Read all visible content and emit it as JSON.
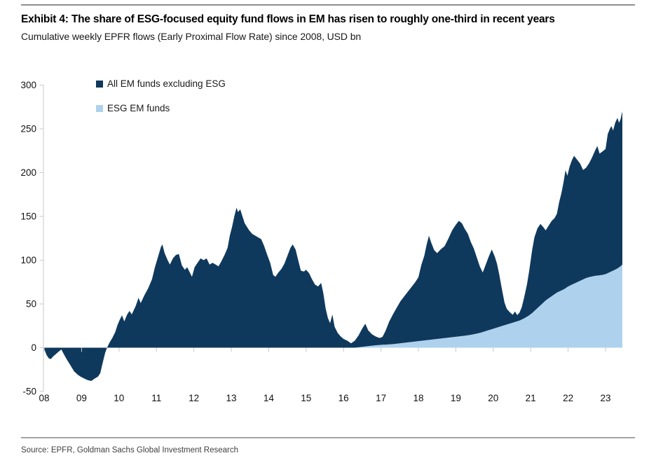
{
  "header": {
    "title": "Exhibit 4: The share of ESG-focused equity fund flows in EM has risen to roughly one-third in recent years",
    "subtitle": "Cumulative weekly EPFR flows (Early Proximal Flow Rate) since 2008, USD bn"
  },
  "legend": [
    {
      "label": "All EM funds excluding ESG",
      "color": "#0f395c"
    },
    {
      "label": "ESG EM funds",
      "color": "#aed2ee"
    }
  ],
  "footer": {
    "source": "Source: EPFR, Goldman Sachs Global Investment Research"
  },
  "colors": {
    "non_esg_area": "#0f395c",
    "esg_area": "#aed2ee",
    "axis": "#c9c9c9",
    "tick_label": "#111111",
    "background": "#ffffff"
  },
  "chart_data": {
    "type": "area",
    "stacked": true,
    "title": "Exhibit 4: The share of ESG-focused equity fund flows in EM has risen to roughly one-third in recent years",
    "subtitle": "Cumulative weekly EPFR flows (Early Proximal Flow Rate) since 2008, USD bn",
    "xlabel": "",
    "ylabel": "USD bn",
    "grid": false,
    "legend_position": "top-left",
    "ylim": [
      -50,
      300
    ],
    "y_ticks": [
      300,
      250,
      200,
      150,
      100,
      50,
      0,
      -50
    ],
    "x_tick_labels": [
      "08",
      "09",
      "10",
      "11",
      "12",
      "13",
      "14",
      "15",
      "16",
      "17",
      "18",
      "19",
      "20",
      "21",
      "22",
      "23"
    ],
    "x_tick_years": [
      2008,
      2009,
      2010,
      2011,
      2012,
      2013,
      2014,
      2015,
      2016,
      2017,
      2018,
      2019,
      2020,
      2021,
      2022,
      2023
    ],
    "x_range": [
      2008,
      2023.45
    ],
    "series": [
      {
        "name": "All EM funds excluding ESG",
        "stack_order": "top",
        "color": "#0f395c",
        "points": [
          [
            2008.0,
            -1
          ],
          [
            2008.06,
            -8
          ],
          [
            2008.12,
            -12
          ],
          [
            2008.18,
            -13
          ],
          [
            2008.24,
            -10
          ],
          [
            2008.32,
            -7
          ],
          [
            2008.4,
            -4
          ],
          [
            2008.46,
            -2
          ],
          [
            2008.52,
            -7
          ],
          [
            2008.6,
            -13
          ],
          [
            2008.7,
            -20
          ],
          [
            2008.8,
            -27
          ],
          [
            2008.9,
            -31
          ],
          [
            2008.97,
            -33
          ],
          [
            2009.06,
            -35
          ],
          [
            2009.16,
            -37
          ],
          [
            2009.26,
            -38
          ],
          [
            2009.36,
            -35
          ],
          [
            2009.44,
            -33
          ],
          [
            2009.5,
            -29
          ],
          [
            2009.56,
            -18
          ],
          [
            2009.63,
            -6
          ],
          [
            2009.68,
            0
          ],
          [
            2009.75,
            6
          ],
          [
            2009.82,
            11
          ],
          [
            2009.9,
            18
          ],
          [
            2009.96,
            26
          ],
          [
            2010.02,
            32
          ],
          [
            2010.08,
            37
          ],
          [
            2010.14,
            30
          ],
          [
            2010.22,
            38
          ],
          [
            2010.28,
            42
          ],
          [
            2010.34,
            38
          ],
          [
            2010.45,
            48
          ],
          [
            2010.52,
            57
          ],
          [
            2010.58,
            51
          ],
          [
            2010.68,
            60
          ],
          [
            2010.78,
            68
          ],
          [
            2010.88,
            78
          ],
          [
            2010.96,
            92
          ],
          [
            2011.05,
            105
          ],
          [
            2011.12,
            115
          ],
          [
            2011.16,
            118
          ],
          [
            2011.22,
            108
          ],
          [
            2011.3,
            100
          ],
          [
            2011.36,
            95
          ],
          [
            2011.44,
            102
          ],
          [
            2011.52,
            106
          ],
          [
            2011.6,
            107
          ],
          [
            2011.68,
            94
          ],
          [
            2011.76,
            89
          ],
          [
            2011.82,
            92
          ],
          [
            2011.88,
            87
          ],
          [
            2011.95,
            81
          ],
          [
            2012.02,
            92
          ],
          [
            2012.1,
            97
          ],
          [
            2012.18,
            102
          ],
          [
            2012.26,
            100
          ],
          [
            2012.34,
            102
          ],
          [
            2012.42,
            95
          ],
          [
            2012.5,
            97
          ],
          [
            2012.58,
            95
          ],
          [
            2012.66,
            93
          ],
          [
            2012.74,
            99
          ],
          [
            2012.82,
            106
          ],
          [
            2012.9,
            114
          ],
          [
            2012.96,
            128
          ],
          [
            2013.02,
            138
          ],
          [
            2013.08,
            150
          ],
          [
            2013.14,
            160
          ],
          [
            2013.18,
            155
          ],
          [
            2013.24,
            158
          ],
          [
            2013.3,
            150
          ],
          [
            2013.36,
            142
          ],
          [
            2013.42,
            138
          ],
          [
            2013.48,
            134
          ],
          [
            2013.56,
            130
          ],
          [
            2013.64,
            128
          ],
          [
            2013.72,
            126
          ],
          [
            2013.8,
            124
          ],
          [
            2013.88,
            116
          ],
          [
            2013.96,
            106
          ],
          [
            2014.04,
            97
          ],
          [
            2014.12,
            83
          ],
          [
            2014.18,
            81
          ],
          [
            2014.26,
            86
          ],
          [
            2014.34,
            90
          ],
          [
            2014.42,
            96
          ],
          [
            2014.5,
            105
          ],
          [
            2014.58,
            114
          ],
          [
            2014.64,
            118
          ],
          [
            2014.72,
            112
          ],
          [
            2014.8,
            98
          ],
          [
            2014.86,
            88
          ],
          [
            2014.94,
            87
          ],
          [
            2015.0,
            89
          ],
          [
            2015.08,
            85
          ],
          [
            2015.16,
            78
          ],
          [
            2015.24,
            72
          ],
          [
            2015.32,
            70
          ],
          [
            2015.4,
            74
          ],
          [
            2015.46,
            62
          ],
          [
            2015.52,
            45
          ],
          [
            2015.58,
            34
          ],
          [
            2015.64,
            28
          ],
          [
            2015.7,
            38
          ],
          [
            2015.76,
            24
          ],
          [
            2015.84,
            17
          ],
          [
            2015.92,
            13
          ],
          [
            2016.0,
            10
          ],
          [
            2016.1,
            8
          ],
          [
            2016.2,
            5
          ],
          [
            2016.3,
            8
          ],
          [
            2016.4,
            13.5
          ],
          [
            2016.5,
            21
          ],
          [
            2016.58,
            26
          ],
          [
            2016.66,
            18
          ],
          [
            2016.76,
            13
          ],
          [
            2016.86,
            10
          ],
          [
            2016.96,
            8
          ],
          [
            2017.04,
            9
          ],
          [
            2017.12,
            15.5
          ],
          [
            2017.22,
            26
          ],
          [
            2017.32,
            34
          ],
          [
            2017.42,
            41
          ],
          [
            2017.52,
            48
          ],
          [
            2017.62,
            53
          ],
          [
            2017.72,
            58
          ],
          [
            2017.82,
            63
          ],
          [
            2017.92,
            68
          ],
          [
            2018.0,
            73
          ],
          [
            2018.08,
            87
          ],
          [
            2018.16,
            97
          ],
          [
            2018.22,
            109
          ],
          [
            2018.28,
            119
          ],
          [
            2018.34,
            111
          ],
          [
            2018.42,
            102
          ],
          [
            2018.5,
            98
          ],
          [
            2018.6,
            102
          ],
          [
            2018.7,
            105
          ],
          [
            2018.8,
            113
          ],
          [
            2018.9,
            122
          ],
          [
            2019.0,
            128
          ],
          [
            2019.08,
            132
          ],
          [
            2019.16,
            129
          ],
          [
            2019.24,
            122
          ],
          [
            2019.32,
            116
          ],
          [
            2019.4,
            106
          ],
          [
            2019.48,
            98
          ],
          [
            2019.56,
            87
          ],
          [
            2019.64,
            76
          ],
          [
            2019.72,
            68
          ],
          [
            2019.8,
            76
          ],
          [
            2019.88,
            84
          ],
          [
            2019.96,
            91
          ],
          [
            2020.04,
            82
          ],
          [
            2020.1,
            73
          ],
          [
            2020.16,
            60
          ],
          [
            2020.22,
            45
          ],
          [
            2020.3,
            26
          ],
          [
            2020.36,
            18
          ],
          [
            2020.44,
            13
          ],
          [
            2020.52,
            9
          ],
          [
            2020.58,
            12
          ],
          [
            2020.64,
            7
          ],
          [
            2020.7,
            9
          ],
          [
            2020.76,
            14
          ],
          [
            2020.82,
            23
          ],
          [
            2020.9,
            37
          ],
          [
            2020.96,
            51
          ],
          [
            2021.04,
            72
          ],
          [
            2021.1,
            84
          ],
          [
            2021.18,
            91
          ],
          [
            2021.26,
            93
          ],
          [
            2021.34,
            86
          ],
          [
            2021.4,
            80
          ],
          [
            2021.48,
            83
          ],
          [
            2021.56,
            86
          ],
          [
            2021.64,
            87
          ],
          [
            2021.7,
            90
          ],
          [
            2021.76,
            102
          ],
          [
            2021.82,
            111
          ],
          [
            2021.88,
            123
          ],
          [
            2021.93,
            135
          ],
          [
            2021.98,
            127
          ],
          [
            2022.04,
            136
          ],
          [
            2022.1,
            142
          ],
          [
            2022.16,
            146
          ],
          [
            2022.24,
            140
          ],
          [
            2022.32,
            134
          ],
          [
            2022.4,
            125
          ],
          [
            2022.48,
            126
          ],
          [
            2022.56,
            130
          ],
          [
            2022.64,
            136
          ],
          [
            2022.72,
            143
          ],
          [
            2022.78,
            148
          ],
          [
            2022.84,
            139
          ],
          [
            2022.92,
            141
          ],
          [
            2023.0,
            143
          ],
          [
            2023.06,
            159
          ],
          [
            2023.12,
            164
          ],
          [
            2023.16,
            166
          ],
          [
            2023.2,
            160
          ],
          [
            2023.26,
            168
          ],
          [
            2023.32,
            172
          ],
          [
            2023.36,
            165
          ],
          [
            2023.4,
            168
          ],
          [
            2023.45,
            175
          ]
        ]
      },
      {
        "name": "ESG EM funds",
        "stack_order": "bottom",
        "color": "#aed2ee",
        "points": [
          [
            2016.3,
            0
          ],
          [
            2016.5,
            1
          ],
          [
            2016.7,
            2
          ],
          [
            2016.9,
            3
          ],
          [
            2017.1,
            3.5
          ],
          [
            2017.3,
            4
          ],
          [
            2017.5,
            5
          ],
          [
            2017.7,
            6
          ],
          [
            2017.9,
            7
          ],
          [
            2018.1,
            8
          ],
          [
            2018.3,
            9
          ],
          [
            2018.5,
            10
          ],
          [
            2018.7,
            11
          ],
          [
            2018.9,
            12
          ],
          [
            2019.1,
            13
          ],
          [
            2019.3,
            14
          ],
          [
            2019.5,
            15.5
          ],
          [
            2019.65,
            17
          ],
          [
            2019.8,
            19
          ],
          [
            2019.95,
            21
          ],
          [
            2020.1,
            23
          ],
          [
            2020.25,
            25
          ],
          [
            2020.4,
            27
          ],
          [
            2020.55,
            29
          ],
          [
            2020.7,
            31
          ],
          [
            2020.85,
            34
          ],
          [
            2021.0,
            38
          ],
          [
            2021.1,
            42
          ],
          [
            2021.2,
            46
          ],
          [
            2021.3,
            50
          ],
          [
            2021.4,
            54
          ],
          [
            2021.5,
            57
          ],
          [
            2021.6,
            60
          ],
          [
            2021.7,
            63
          ],
          [
            2021.8,
            65
          ],
          [
            2021.9,
            67
          ],
          [
            2022.0,
            70
          ],
          [
            2022.1,
            72
          ],
          [
            2022.2,
            74
          ],
          [
            2022.3,
            76
          ],
          [
            2022.4,
            78
          ],
          [
            2022.5,
            80
          ],
          [
            2022.6,
            81
          ],
          [
            2022.7,
            82
          ],
          [
            2022.8,
            82.5
          ],
          [
            2022.9,
            83
          ],
          [
            2023.0,
            84
          ],
          [
            2023.1,
            86
          ],
          [
            2023.2,
            88
          ],
          [
            2023.3,
            90
          ],
          [
            2023.4,
            93
          ],
          [
            2023.45,
            95
          ]
        ]
      }
    ]
  }
}
